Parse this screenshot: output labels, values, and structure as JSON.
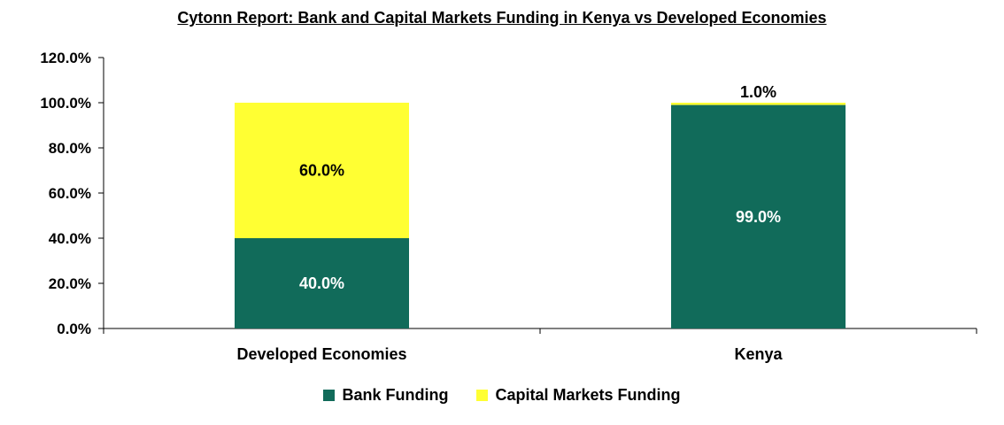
{
  "chart_data": {
    "type": "bar",
    "stacked": true,
    "title": "Cytonn Report: Bank and Capital Markets Funding in Kenya vs Developed Economies",
    "categories": [
      "Developed Economies",
      "Kenya"
    ],
    "series": [
      {
        "name": "Bank Funding",
        "values": [
          40.0,
          99.0
        ],
        "color": "#116B5A",
        "label_color": "#FFFFFF"
      },
      {
        "name": "Capital Markets Funding",
        "values": [
          60.0,
          1.0
        ],
        "color": "#FFFF33",
        "label_color": "#000000"
      }
    ],
    "data_labels": [
      [
        "40.0%",
        "99.0%"
      ],
      [
        "60.0%",
        "1.0%"
      ]
    ],
    "ylim": [
      0,
      120
    ],
    "yticks": [
      0,
      20,
      40,
      60,
      80,
      100,
      120
    ],
    "ytick_labels": [
      "0.0%",
      "20.0%",
      "40.0%",
      "60.0%",
      "80.0%",
      "100.0%",
      "120.0%"
    ],
    "grid": false,
    "legend_position": "bottom"
  }
}
